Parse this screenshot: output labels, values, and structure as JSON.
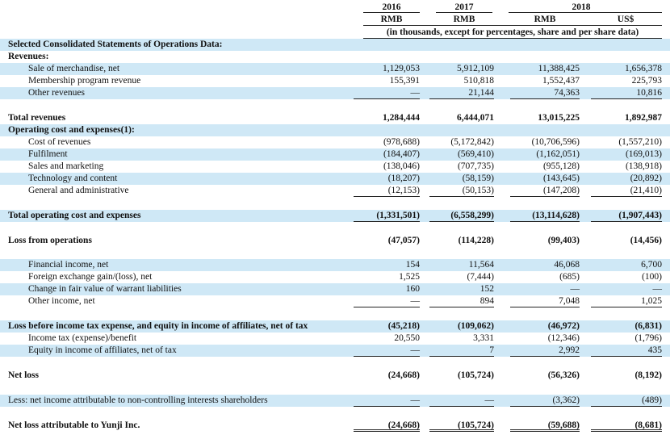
{
  "header": {
    "years": [
      "2016",
      "2017",
      "2018"
    ],
    "currencies": [
      "RMB",
      "RMB",
      "RMB",
      "US$"
    ],
    "note": "(in thousands, except for percentages, share and per share data)"
  },
  "rows": [
    {
      "label": "Selected Consolidated Statements of Operations Data:",
      "indent": 0,
      "bold": true,
      "shade": true,
      "values": []
    },
    {
      "label": "Revenues:",
      "indent": 0,
      "bold": true,
      "shade": false,
      "values": []
    },
    {
      "label": "Sale of merchandise, net",
      "indent": 1,
      "bold": false,
      "shade": true,
      "values": [
        "1,129,053",
        "5,912,109",
        "11,388,425",
        "1,656,378"
      ]
    },
    {
      "label": "Membership program revenue",
      "indent": 1,
      "bold": false,
      "shade": false,
      "values": [
        "155,391",
        "510,818",
        "1,552,437",
        "225,793"
      ]
    },
    {
      "label": "Other revenues",
      "indent": 1,
      "bold": false,
      "shade": true,
      "underline": true,
      "values": [
        "—",
        "21,144",
        "74,363",
        "10,816"
      ]
    },
    {
      "label": "Total revenues",
      "indent": 0,
      "bold": true,
      "shade": false,
      "values": [
        "1,284,444",
        "6,444,071",
        "13,015,225",
        "1,892,987"
      ]
    },
    {
      "label": "Operating cost and expenses(1):",
      "indent": 0,
      "bold": true,
      "shade": true,
      "values": []
    },
    {
      "label": "Cost of revenues",
      "indent": 1,
      "bold": false,
      "shade": false,
      "values": [
        "(978,688)",
        "(5,172,842)",
        "(10,706,596)",
        "(1,557,210)"
      ]
    },
    {
      "label": "Fulfilment",
      "indent": 1,
      "bold": false,
      "shade": true,
      "values": [
        "(184,407)",
        "(569,410)",
        "(1,162,051)",
        "(169,013)"
      ]
    },
    {
      "label": "Sales and marketing",
      "indent": 1,
      "bold": false,
      "shade": false,
      "values": [
        "(138,046)",
        "(707,735)",
        "(955,128)",
        "(138,918)"
      ]
    },
    {
      "label": "Technology and content",
      "indent": 1,
      "bold": false,
      "shade": true,
      "values": [
        "(18,207)",
        "(58,159)",
        "(143,645)",
        "(20,892)"
      ]
    },
    {
      "label": "General and administrative",
      "indent": 1,
      "bold": false,
      "shade": false,
      "underline": true,
      "values": [
        "(12,153)",
        "(50,153)",
        "(147,208)",
        "(21,410)"
      ]
    },
    {
      "label": "Total operating cost and expenses",
      "indent": 0,
      "bold": true,
      "shade": true,
      "underline": true,
      "values": [
        "(1,331,501)",
        "(6,558,299)",
        "(13,114,628)",
        "(1,907,443)"
      ]
    },
    {
      "label": "Loss from operations",
      "indent": 0,
      "bold": true,
      "shade": false,
      "values": [
        "(47,057)",
        "(114,228)",
        "(99,403)",
        "(14,456)"
      ]
    },
    {
      "label": "Financial income, net",
      "indent": 1,
      "bold": false,
      "shade": true,
      "values": [
        "154",
        "11,564",
        "46,068",
        "6,700"
      ]
    },
    {
      "label": "Foreign exchange gain/(loss), net",
      "indent": 1,
      "bold": false,
      "shade": false,
      "values": [
        "1,525",
        "(7,444)",
        "(685)",
        "(100)"
      ]
    },
    {
      "label": "Change in fair value of warrant liabilities",
      "indent": 1,
      "bold": false,
      "shade": true,
      "values": [
        "160",
        "152",
        "—",
        "—"
      ]
    },
    {
      "label": "Other income, net",
      "indent": 1,
      "bold": false,
      "shade": false,
      "underline": true,
      "values": [
        "—",
        "894",
        "7,048",
        "1,025"
      ]
    },
    {
      "label": "Loss before income tax expense, and equity in income of affiliates, net of tax",
      "indent": 0,
      "bold": true,
      "shade": true,
      "values": [
        "(45,218)",
        "(109,062)",
        "(46,972)",
        "(6,831)"
      ]
    },
    {
      "label": "Income tax (expense)/benefit",
      "indent": 1,
      "bold": false,
      "shade": false,
      "values": [
        "20,550",
        "3,331",
        "(12,346)",
        "(1,796)"
      ]
    },
    {
      "label": "Equity in income of affiliates, net of tax",
      "indent": 1,
      "bold": false,
      "shade": true,
      "underline": true,
      "values": [
        "—",
        "7",
        "2,992",
        "435"
      ]
    },
    {
      "label": "Net loss",
      "indent": 0,
      "bold": true,
      "shade": false,
      "values": [
        "(24,668)",
        "(105,724)",
        "(56,326)",
        "(8,192)"
      ]
    },
    {
      "label": "Less: net income attributable to non-controlling interests shareholders",
      "indent": 0,
      "bold": false,
      "shade": true,
      "underline": true,
      "values": [
        "—",
        "—",
        "(3,362)",
        "(489)"
      ]
    },
    {
      "label": "Net loss attributable to Yunji Inc.",
      "indent": 0,
      "bold": true,
      "shade": false,
      "doubleline": true,
      "values": [
        "(24,668)",
        "(105,724)",
        "(59,688)",
        "(8,681)"
      ]
    }
  ]
}
